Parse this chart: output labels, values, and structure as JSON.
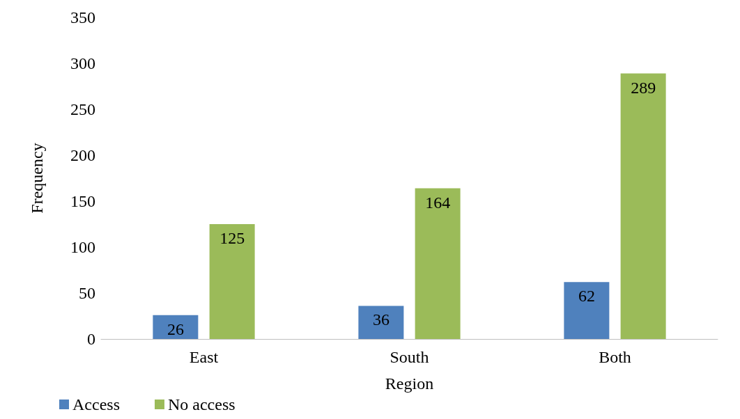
{
  "chart_data": {
    "type": "bar",
    "xlabel": "Region",
    "ylabel": "Frequency",
    "categories": [
      "East",
      "South",
      "Both"
    ],
    "series": [
      {
        "name": "Access",
        "color": "#4f81bd",
        "values": [
          26,
          36,
          62
        ]
      },
      {
        "name": "No access",
        "color": "#9bbb59",
        "values": [
          125,
          164,
          289
        ]
      }
    ],
    "ylim": [
      0,
      350
    ],
    "yticks": [
      0,
      50,
      100,
      150,
      200,
      250,
      300,
      350
    ],
    "grid": false,
    "legend": "bottom left",
    "data_labels": true
  }
}
